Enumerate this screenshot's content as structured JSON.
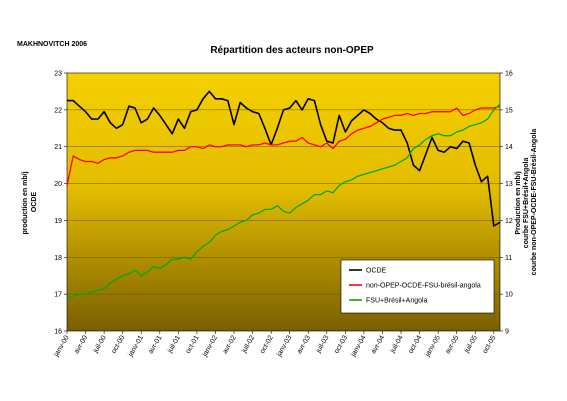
{
  "author": "MAKHNOVITCH 2006",
  "chart_data": {
    "type": "line",
    "title": "Répartition des acteurs non-OPEP",
    "ylabel_left_lines": [
      "production en mb/j",
      "OCDE"
    ],
    "ylabel_right_lines": [
      "Production en mb/j",
      "courbe FSU+Brésil+Angola",
      "courbe non-OPEP-OCDE-FSU-Brésil-Angola"
    ],
    "ylim_left": [
      16,
      23
    ],
    "ylim_right": [
      9,
      16
    ],
    "yticks_left": [
      "16",
      "17",
      "18",
      "19",
      "20",
      "21",
      "22",
      "23"
    ],
    "yticks_right": [
      "9",
      "10",
      "11",
      "12",
      "13",
      "14",
      "15",
      "16"
    ],
    "x_tick_labels": [
      "janv-00",
      "avr-00",
      "juil-00",
      "oct-00",
      "janv-01",
      "avr-01",
      "juil-01",
      "oct-01",
      "janv-02",
      "avr-02",
      "juil-02",
      "oct-02",
      "janv-03",
      "avr-03",
      "juil-03",
      "oct-03",
      "janv-04",
      "avr-04",
      "juil-04",
      "oct-04",
      "janv-05",
      "avr-05",
      "juil-05",
      "oct-05"
    ],
    "months": 71,
    "grid": true,
    "legend_position": "bottom-right",
    "series": [
      {
        "name": "OCDE",
        "axis": "left",
        "color": "#000000",
        "values": [
          22.25,
          22.25,
          22.1,
          21.95,
          21.75,
          21.75,
          21.95,
          21.65,
          21.5,
          21.6,
          22.1,
          22.05,
          21.65,
          21.75,
          22.05,
          21.85,
          21.6,
          21.35,
          21.75,
          21.5,
          21.95,
          22.0,
          22.3,
          22.5,
          22.3,
          22.3,
          22.25,
          21.6,
          22.2,
          22.05,
          21.95,
          21.9,
          21.5,
          21.05,
          21.5,
          22.0,
          22.05,
          22.25,
          22.0,
          22.3,
          22.25,
          21.6,
          21.15,
          21.1,
          21.85,
          21.4,
          21.7,
          21.85,
          22.0,
          21.9,
          21.75,
          21.65,
          21.5,
          21.45,
          21.45,
          21.1,
          20.5,
          20.35,
          20.8,
          21.25,
          20.9,
          20.85,
          21.0,
          20.95,
          21.15,
          21.1,
          20.5,
          20.05,
          20.2,
          18.85,
          18.95
        ]
      },
      {
        "name": "non-OPEP-OCDE-FSU-brésil-angola",
        "axis": "right",
        "color": "#ff0000",
        "values": [
          12.95,
          13.75,
          13.65,
          13.6,
          13.6,
          13.55,
          13.65,
          13.7,
          13.7,
          13.75,
          13.85,
          13.9,
          13.9,
          13.9,
          13.85,
          13.85,
          13.85,
          13.85,
          13.9,
          13.9,
          14.0,
          14.0,
          13.95,
          14.05,
          14.0,
          14.0,
          14.05,
          14.05,
          14.05,
          14.0,
          14.05,
          14.05,
          14.1,
          14.05,
          14.05,
          14.1,
          14.15,
          14.15,
          14.25,
          14.1,
          14.05,
          14.0,
          14.1,
          13.95,
          14.15,
          14.2,
          14.35,
          14.45,
          14.5,
          14.55,
          14.65,
          14.75,
          14.8,
          14.85,
          14.85,
          14.9,
          14.85,
          14.9,
          14.9,
          14.95,
          14.95,
          14.95,
          14.95,
          15.05,
          14.85,
          14.9,
          15.0,
          15.05,
          15.05,
          15.05,
          15.1
        ]
      },
      {
        "name": "FSU+Brésil+Angola",
        "axis": "right",
        "color": "#00aa00",
        "values": [
          9.85,
          9.95,
          10.0,
          10.0,
          10.05,
          10.1,
          10.15,
          10.3,
          10.4,
          10.5,
          10.55,
          10.65,
          10.5,
          10.6,
          10.75,
          10.7,
          10.8,
          10.95,
          10.95,
          11.0,
          10.95,
          11.15,
          11.3,
          11.4,
          11.6,
          11.7,
          11.75,
          11.85,
          11.95,
          12.0,
          12.15,
          12.2,
          12.3,
          12.3,
          12.4,
          12.25,
          12.2,
          12.35,
          12.45,
          12.55,
          12.7,
          12.7,
          12.8,
          12.75,
          12.95,
          13.05,
          13.1,
          13.2,
          13.25,
          13.3,
          13.35,
          13.4,
          13.45,
          13.5,
          13.6,
          13.7,
          13.95,
          14.05,
          14.2,
          14.3,
          14.35,
          14.3,
          14.3,
          14.4,
          14.45,
          14.55,
          14.6,
          14.65,
          14.75,
          15.0,
          15.15
        ]
      }
    ]
  }
}
